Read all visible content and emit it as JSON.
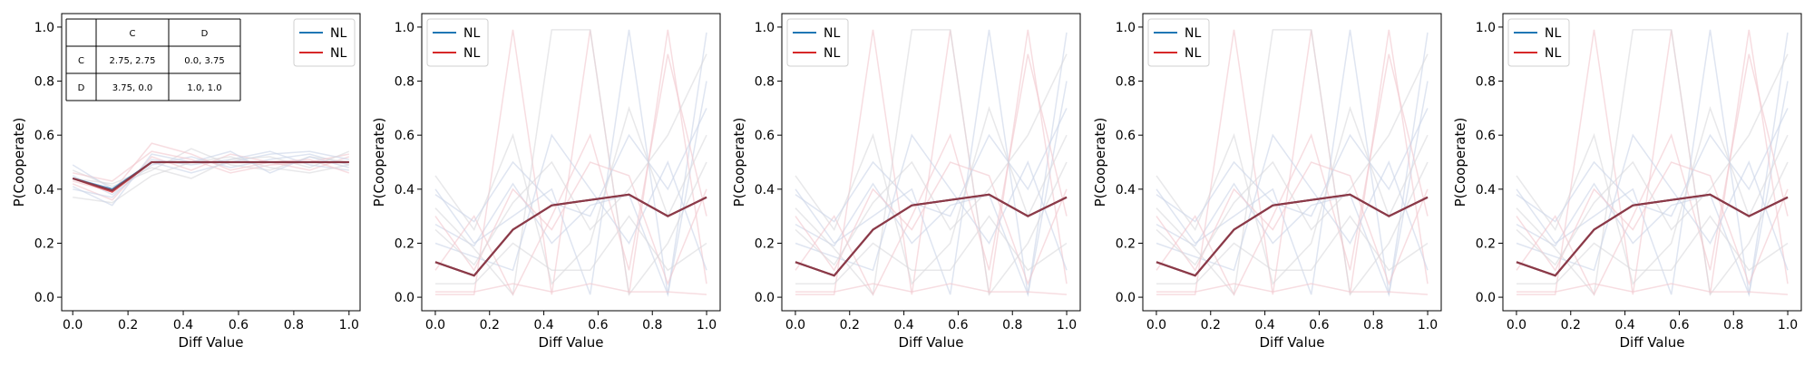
{
  "colors": {
    "blue": "#1f77b4",
    "red": "#d62728",
    "overlay": "#8b3a48",
    "faint_blue": "#c9d3e8",
    "faint_red": "#f2c7cd",
    "grey": "#d8d8dc"
  },
  "payoff_table": {
    "col_headers": [
      "C",
      "D"
    ],
    "rows": [
      {
        "label": "C",
        "cells": [
          "2.75, 2.75",
          "0.0, 3.75"
        ]
      },
      {
        "label": "D",
        "cells": [
          "3.75, 0.0",
          "1.0, 1.0"
        ]
      }
    ]
  },
  "chart_data": [
    {
      "type": "line",
      "xlabel": "Diff Value",
      "ylabel": "P(Cooperate)",
      "xlim": [
        -0.04,
        1.04
      ],
      "ylim": [
        -0.05,
        1.05
      ],
      "xticks": [
        "0.0",
        "0.2",
        "0.4",
        "0.6",
        "0.8",
        "1.0"
      ],
      "yticks": [
        "0.0",
        "0.2",
        "0.4",
        "0.6",
        "0.8",
        "1.0"
      ],
      "legend_position": "upper-right",
      "x": [
        0.0,
        0.143,
        0.286,
        0.429,
        0.571,
        0.714,
        0.857,
        1.0
      ],
      "series": [
        {
          "name": "NL",
          "color": "blue",
          "values": [
            0.44,
            0.4,
            0.5,
            0.5,
            0.5,
            0.5,
            0.5,
            0.5
          ]
        },
        {
          "name": "NL",
          "color": "red",
          "values": [
            0.44,
            0.39,
            0.5,
            0.5,
            0.5,
            0.5,
            0.5,
            0.5
          ]
        }
      ]
    },
    {
      "type": "line",
      "xlabel": "Diff Value",
      "ylabel": "P(Cooperate)",
      "xlim": [
        -0.05,
        1.05
      ],
      "ylim": [
        -0.05,
        1.05
      ],
      "xticks": [
        "0.0",
        "0.2",
        "0.4",
        "0.6",
        "0.8",
        "1.0"
      ],
      "yticks": [
        "0.0",
        "0.2",
        "0.4",
        "0.6",
        "0.8",
        "1.0"
      ],
      "legend_position": "upper-left",
      "x": [
        0.0,
        0.143,
        0.286,
        0.429,
        0.571,
        0.714,
        0.857,
        1.0
      ],
      "series": [
        {
          "name": "NL",
          "color": "blue",
          "values": [
            0.13,
            0.08,
            0.25,
            0.34,
            0.36,
            0.38,
            0.3,
            0.37
          ]
        },
        {
          "name": "NL",
          "color": "red",
          "values": [
            0.13,
            0.08,
            0.25,
            0.34,
            0.36,
            0.38,
            0.3,
            0.37
          ]
        }
      ]
    },
    {
      "type": "line",
      "xlabel": "Diff Value",
      "ylabel": "P(Cooperate)",
      "xlim": [
        -0.05,
        1.05
      ],
      "ylim": [
        -0.05,
        1.05
      ],
      "xticks": [
        "0.0",
        "0.2",
        "0.4",
        "0.6",
        "0.8",
        "1.0"
      ],
      "yticks": [
        "0.0",
        "0.2",
        "0.4",
        "0.6",
        "0.8",
        "1.0"
      ],
      "legend_position": "upper-left",
      "x": [
        0.0,
        0.143,
        0.286,
        0.429,
        0.571,
        0.714,
        0.857,
        1.0
      ],
      "series": [
        {
          "name": "NL",
          "color": "blue",
          "values": [
            0.13,
            0.08,
            0.25,
            0.34,
            0.36,
            0.38,
            0.3,
            0.37
          ]
        },
        {
          "name": "NL",
          "color": "red",
          "values": [
            0.13,
            0.08,
            0.25,
            0.34,
            0.36,
            0.38,
            0.3,
            0.37
          ]
        }
      ]
    },
    {
      "type": "line",
      "xlabel": "Diff Value",
      "ylabel": "P(Cooperate)",
      "xlim": [
        -0.05,
        1.05
      ],
      "ylim": [
        -0.05,
        1.05
      ],
      "xticks": [
        "0.0",
        "0.2",
        "0.4",
        "0.6",
        "0.8",
        "1.0"
      ],
      "yticks": [
        "0.0",
        "0.2",
        "0.4",
        "0.6",
        "0.8",
        "1.0"
      ],
      "legend_position": "upper-left",
      "x": [
        0.0,
        0.143,
        0.286,
        0.429,
        0.571,
        0.714,
        0.857,
        1.0
      ],
      "series": [
        {
          "name": "NL",
          "color": "blue",
          "values": [
            0.13,
            0.08,
            0.25,
            0.34,
            0.36,
            0.38,
            0.3,
            0.37
          ]
        },
        {
          "name": "NL",
          "color": "red",
          "values": [
            0.13,
            0.08,
            0.25,
            0.34,
            0.36,
            0.38,
            0.3,
            0.37
          ]
        }
      ]
    },
    {
      "type": "line",
      "xlabel": "Diff Value",
      "ylabel": "P(Cooperate)",
      "xlim": [
        -0.05,
        1.05
      ],
      "ylim": [
        -0.05,
        1.05
      ],
      "xticks": [
        "0.0",
        "0.2",
        "0.4",
        "0.6",
        "0.8",
        "1.0"
      ],
      "yticks": [
        "0.0",
        "0.2",
        "0.4",
        "0.6",
        "0.8",
        "1.0"
      ],
      "legend_position": "upper-left",
      "x": [
        0.0,
        0.143,
        0.286,
        0.429,
        0.571,
        0.714,
        0.857,
        1.0
      ],
      "series": [
        {
          "name": "NL",
          "color": "blue",
          "values": [
            0.13,
            0.08,
            0.25,
            0.34,
            0.36,
            0.38,
            0.3,
            0.37
          ]
        },
        {
          "name": "NL",
          "color": "red",
          "values": [
            0.13,
            0.08,
            0.25,
            0.34,
            0.36,
            0.38,
            0.3,
            0.37
          ]
        }
      ]
    }
  ],
  "background_traces": [
    {
      "panel": 0,
      "x": [
        0.0,
        0.143,
        0.286,
        0.429,
        0.571,
        0.714,
        0.857,
        1.0
      ],
      "lines": [
        [
          0.45,
          0.38,
          0.49,
          0.52,
          0.48,
          0.51,
          0.53,
          0.49
        ],
        [
          0.42,
          0.36,
          0.52,
          0.47,
          0.53,
          0.5,
          0.47,
          0.52
        ],
        [
          0.47,
          0.41,
          0.47,
          0.55,
          0.49,
          0.47,
          0.52,
          0.5
        ],
        [
          0.4,
          0.37,
          0.51,
          0.49,
          0.51,
          0.54,
          0.49,
          0.47
        ],
        [
          0.46,
          0.43,
          0.54,
          0.51,
          0.46,
          0.49,
          0.5,
          0.53
        ],
        [
          0.37,
          0.35,
          0.45,
          0.5,
          0.52,
          0.48,
          0.46,
          0.49
        ],
        [
          0.49,
          0.4,
          0.5,
          0.46,
          0.5,
          0.53,
          0.54,
          0.51
        ],
        [
          0.43,
          0.39,
          0.57,
          0.53,
          0.47,
          0.5,
          0.51,
          0.46
        ],
        [
          0.44,
          0.42,
          0.48,
          0.44,
          0.51,
          0.52,
          0.48,
          0.54
        ],
        [
          0.41,
          0.34,
          0.53,
          0.5,
          0.54,
          0.46,
          0.52,
          0.48
        ]
      ]
    },
    {
      "panel": "1-4",
      "x": [
        0.0,
        0.143,
        0.286,
        0.429,
        0.571,
        0.714,
        0.857,
        1.0
      ],
      "lines": [
        [
          0.27,
          0.19,
          0.42,
          0.2,
          0.34,
          0.38,
          0.01,
          0.98
        ],
        [
          0.01,
          0.01,
          0.99,
          0.01,
          0.99,
          0.01,
          0.99,
          0.05
        ],
        [
          0.33,
          0.18,
          0.01,
          0.99,
          0.99,
          0.01,
          0.2,
          0.5
        ],
        [
          0.4,
          0.2,
          0.3,
          0.4,
          0.01,
          0.99,
          0.01,
          0.8
        ],
        [
          0.1,
          0.3,
          0.01,
          0.3,
          0.6,
          0.1,
          0.9,
          0.3
        ],
        [
          0.45,
          0.25,
          0.6,
          0.05,
          0.2,
          0.7,
          0.3,
          0.6
        ],
        [
          0.2,
          0.15,
          0.1,
          0.6,
          0.4,
          0.2,
          0.5,
          0.1
        ],
        [
          0.3,
          0.1,
          0.4,
          0.25,
          0.5,
          0.45,
          0.05,
          0.4
        ],
        [
          0.05,
          0.05,
          0.2,
          0.1,
          0.1,
          0.3,
          0.1,
          0.2
        ],
        [
          0.38,
          0.28,
          0.5,
          0.35,
          0.3,
          0.6,
          0.4,
          0.7
        ],
        [
          0.02,
          0.02,
          0.05,
          0.02,
          0.05,
          0.02,
          0.02,
          0.01
        ],
        [
          0.25,
          0.12,
          0.35,
          0.5,
          0.25,
          0.4,
          0.6,
          0.9
        ]
      ]
    }
  ]
}
